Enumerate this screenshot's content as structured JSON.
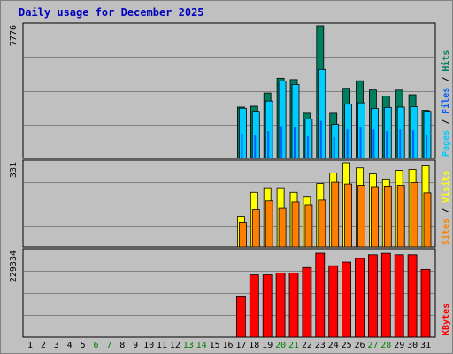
{
  "title": "Daily usage for December 2025",
  "colors": {
    "background": "#c0c0c0",
    "plot": "#c0c0c0",
    "hits": "#008060",
    "files": "#0060ff",
    "pages": "#00ccff",
    "visits": "#ffff00",
    "sites": "#ff8000",
    "kbytes": "#ff0000",
    "title": "#0000c0"
  },
  "chart_data": {
    "type": "bar",
    "title": "Daily usage for December 2025",
    "categories": [
      "1",
      "2",
      "3",
      "4",
      "5",
      "6",
      "7",
      "8",
      "9",
      "10",
      "11",
      "12",
      "13",
      "14",
      "15",
      "16",
      "17",
      "18",
      "19",
      "20",
      "21",
      "22",
      "23",
      "24",
      "25",
      "26",
      "27",
      "28",
      "29",
      "30",
      "31"
    ],
    "weekend_days": [
      "6",
      "7",
      "13",
      "14",
      "20",
      "21",
      "27",
      "28"
    ],
    "panels": [
      {
        "name": "hits-files-pages",
        "ymax_label": "7776",
        "ymax": 7776,
        "legend": [
          {
            "label": "Hits",
            "color": "#008060"
          },
          {
            "label": "Files",
            "color": "#0060ff"
          },
          {
            "label": "Pages",
            "color": "#00ccff"
          }
        ],
        "series": [
          {
            "name": "Hits",
            "values": [
              0,
              0,
              0,
              0,
              0,
              0,
              0,
              0,
              0,
              0,
              0,
              0,
              0,
              0,
              0,
              0,
              3010,
              3060,
              3830,
              4700,
              4620,
              2650,
              7776,
              2650,
              4110,
              4550,
              4010,
              3660,
              4000,
              3730,
              2820
            ]
          },
          {
            "name": "Files",
            "values": [
              0,
              0,
              0,
              0,
              0,
              0,
              0,
              0,
              0,
              0,
              0,
              0,
              0,
              0,
              0,
              0,
              1450,
              1350,
              1600,
              1900,
              1850,
              1300,
              2200,
              1250,
              1700,
              1850,
              1700,
              1600,
              1700,
              1650,
              1350
            ]
          },
          {
            "name": "Pages",
            "values": [
              0,
              0,
              0,
              0,
              0,
              0,
              0,
              0,
              0,
              0,
              0,
              0,
              0,
              0,
              0,
              0,
              2940,
              2760,
              3360,
              4530,
              4330,
              2300,
              5220,
              1990,
              3180,
              3260,
              2930,
              2990,
              3010,
              3030,
              2760
            ]
          }
        ]
      },
      {
        "name": "visits-sites",
        "ymax_label": "331",
        "ymax": 331,
        "legend": [
          {
            "label": "Visits",
            "color": "#ffff00"
          },
          {
            "label": "Sites",
            "color": "#ff8000"
          }
        ],
        "series": [
          {
            "name": "Visits",
            "values": [
              0,
              0,
              0,
              0,
              0,
              0,
              0,
              0,
              0,
              0,
              0,
              0,
              0,
              0,
              0,
              0,
              120,
              215,
              233,
              233,
              215,
              196,
              249,
              291,
              331,
              311,
              287,
              267,
              301,
              305,
              319
            ]
          },
          {
            "name": "Sites",
            "values": [
              0,
              0,
              0,
              0,
              0,
              0,
              0,
              0,
              0,
              0,
              0,
              0,
              0,
              0,
              0,
              0,
              96,
              148,
              182,
              153,
              178,
              164,
              185,
              254,
              247,
              242,
              237,
              239,
              242,
              253,
              213
            ]
          }
        ]
      },
      {
        "name": "kbytes",
        "ymax_label": "229334",
        "ymax": 229334,
        "legend": [
          {
            "label": "KBytes",
            "color": "#ff0000"
          }
        ],
        "series": [
          {
            "name": "KBytes",
            "values": [
              0,
              0,
              0,
              0,
              0,
              0,
              0,
              0,
              0,
              0,
              0,
              0,
              0,
              0,
              0,
              0,
              110000,
              170000,
              170000,
              175000,
              175000,
              190000,
              229334,
              195000,
              205000,
              215000,
              225000,
              229000,
              225000,
              225000,
              185000
            ]
          }
        ]
      }
    ]
  }
}
